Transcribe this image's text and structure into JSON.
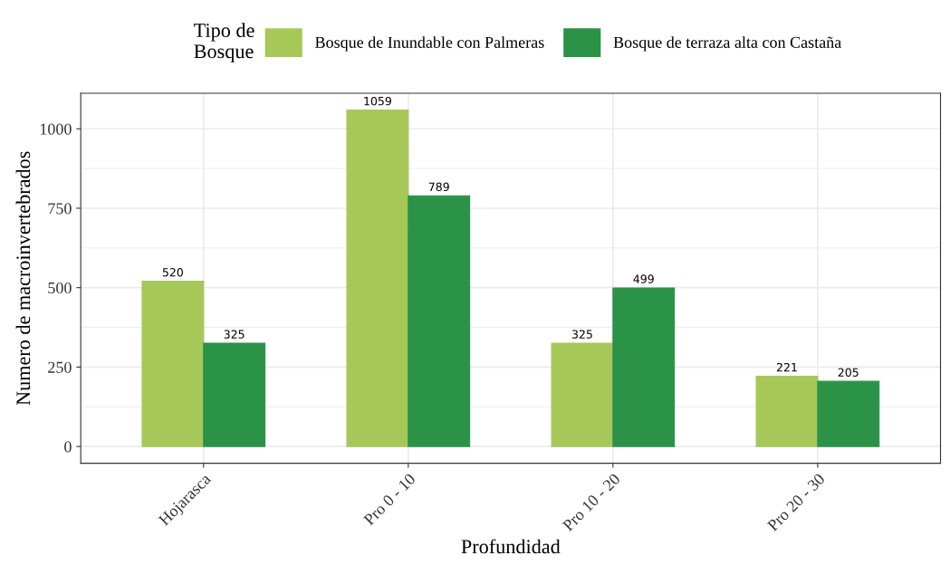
{
  "chart_data": {
    "type": "bar",
    "xlabel": "Profundidad",
    "ylabel": "Numero de macroinvertebrados",
    "legend_title": "Tipo de\nBosque",
    "categories": [
      "Hojarasca",
      "Pro 0 - 10",
      "Pro 10 - 20",
      "Pro 20 - 30"
    ],
    "series": [
      {
        "name": "Bosque de Inundable con Palmeras",
        "color": "#a6c858",
        "values": [
          520,
          1059,
          325,
          221
        ]
      },
      {
        "name": "Bosque de terraza alta con Castaña",
        "color": "#2b9348",
        "values": [
          325,
          789,
          499,
          205
        ]
      }
    ],
    "ylim": [
      -53,
      1112
    ],
    "yticks": [
      0,
      250,
      500,
      750,
      1000
    ],
    "grid": true,
    "legend": "top",
    "data_labels": true
  }
}
